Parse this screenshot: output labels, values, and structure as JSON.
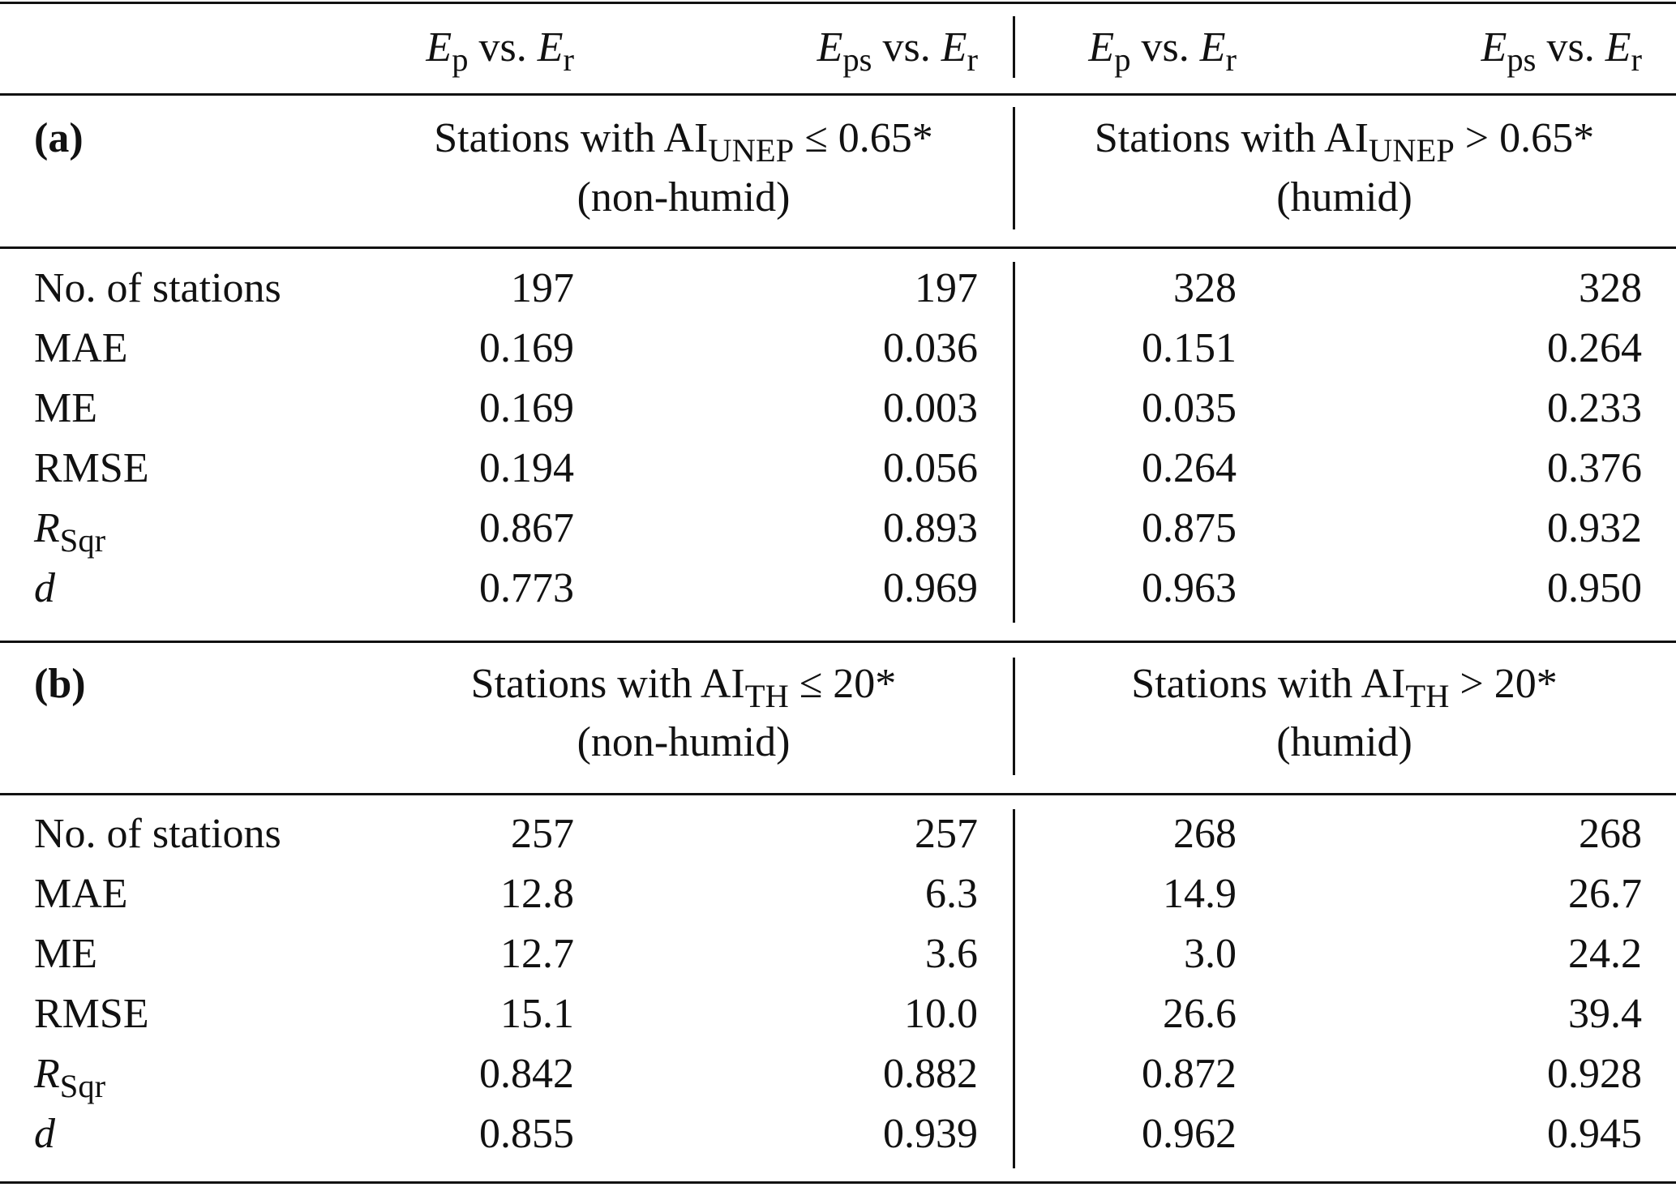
{
  "table": {
    "header": [
      {
        "var1": "E",
        "sub1": "p",
        "vs": "vs.",
        "var2": "E",
        "sub2": "r"
      },
      {
        "var1": "E",
        "sub1": "ps",
        "vs": "vs.",
        "var2": "E",
        "sub2": "r"
      },
      {
        "var1": "E",
        "sub1": "p",
        "vs": "vs.",
        "var2": "E",
        "sub2": "r"
      },
      {
        "var1": "E",
        "sub1": "ps",
        "vs": "vs.",
        "var2": "E",
        "sub2": "r"
      }
    ],
    "sections": [
      {
        "label": "(a)",
        "groups": [
          {
            "text": "Stations with AI",
            "sub": "UNEP",
            "condition": "≤ 0.65*",
            "note": "(non-humid)"
          },
          {
            "text": "Stations with AI",
            "sub": "UNEP",
            "condition": "> 0.65*",
            "note": "(humid)"
          }
        ],
        "rows": [
          {
            "label": "No. of stations",
            "values": [
              "197",
              "197",
              "328",
              "328"
            ]
          },
          {
            "label": "MAE",
            "values": [
              "0.169",
              "0.036",
              "0.151",
              "0.264"
            ]
          },
          {
            "label": "ME",
            "values": [
              "0.169",
              "0.003",
              "0.035",
              "0.233"
            ]
          },
          {
            "label": "RMSE",
            "values": [
              "0.194",
              "0.056",
              "0.264",
              "0.376"
            ]
          },
          {
            "label": "R",
            "sub": "Sqr",
            "italic": true,
            "values": [
              "0.867",
              "0.893",
              "0.875",
              "0.932"
            ]
          },
          {
            "label": "d",
            "italic": true,
            "values": [
              "0.773",
              "0.969",
              "0.963",
              "0.950"
            ]
          }
        ]
      },
      {
        "label": "(b)",
        "groups": [
          {
            "text": "Stations with AI",
            "sub": "TH",
            "condition": "≤ 20*",
            "note": "(non-humid)"
          },
          {
            "text": "Stations with AI",
            "sub": "TH",
            "condition": "> 20*",
            "note": "(humid)"
          }
        ],
        "rows": [
          {
            "label": "No. of stations",
            "values": [
              "257",
              "257",
              "268",
              "268"
            ]
          },
          {
            "label": "MAE",
            "values": [
              "12.8",
              "6.3",
              "14.9",
              "26.7"
            ]
          },
          {
            "label": "ME",
            "values": [
              "12.7",
              "3.6",
              "3.0",
              "24.2"
            ]
          },
          {
            "label": "RMSE",
            "values": [
              "15.1",
              "10.0",
              "26.6",
              "39.4"
            ]
          },
          {
            "label": "R",
            "sub": "Sqr",
            "italic": true,
            "values": [
              "0.842",
              "0.882",
              "0.872",
              "0.928"
            ]
          },
          {
            "label": "d",
            "italic": true,
            "values": [
              "0.855",
              "0.939",
              "0.962",
              "0.945"
            ]
          }
        ]
      }
    ]
  }
}
